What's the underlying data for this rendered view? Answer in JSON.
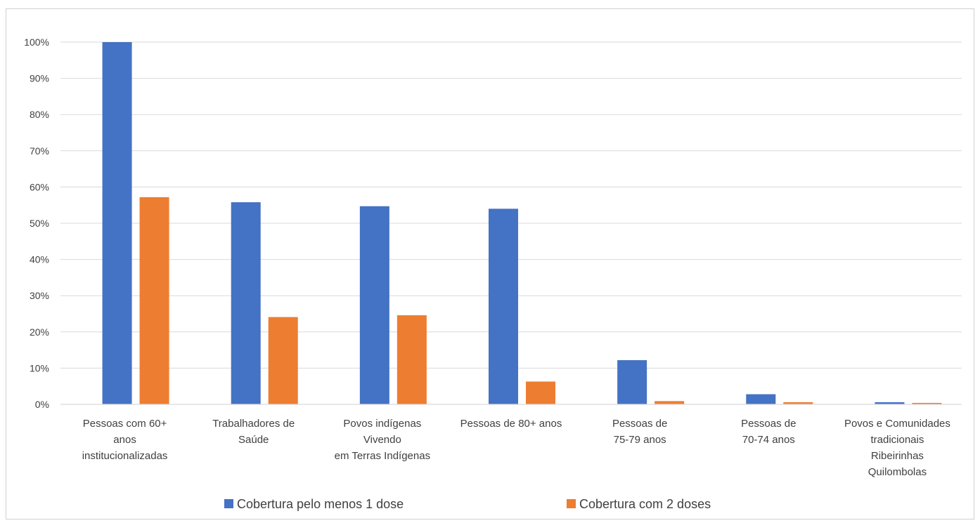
{
  "chart_data": {
    "type": "bar",
    "title": "",
    "xlabel": "",
    "ylabel": "",
    "ylim": [
      0,
      1
    ],
    "y_ticks": [
      "0%",
      "10%",
      "20%",
      "30%",
      "40%",
      "50%",
      "60%",
      "70%",
      "80%",
      "90%",
      "100%"
    ],
    "grid": true,
    "legend_position": "bottom",
    "categories": [
      [
        "Pessoas com 60+",
        "anos",
        "institucionalizadas"
      ],
      [
        "Trabalhadores de",
        "Saúde"
      ],
      [
        "Povos indígenas",
        "Vivendo",
        "em Terras Indígenas"
      ],
      [
        "Pessoas de 80+ anos"
      ],
      [
        "Pessoas de",
        "75-79 anos"
      ],
      [
        "Pessoas de",
        "70-74 anos"
      ],
      [
        "Povos e Comunidades",
        "tradicionais",
        "Ribeirinhas",
        "Quilombolas"
      ]
    ],
    "series": [
      {
        "name": "Cobertura pelo menos 1 dose",
        "color": "#4472c4",
        "values": [
          1.0,
          0.558,
          0.547,
          0.54,
          0.122,
          0.028,
          0.006
        ]
      },
      {
        "name": "Cobertura com 2 doses",
        "color": "#ed7d31",
        "values": [
          0.572,
          0.241,
          0.246,
          0.063,
          0.009,
          0.006,
          0.004
        ]
      }
    ]
  }
}
